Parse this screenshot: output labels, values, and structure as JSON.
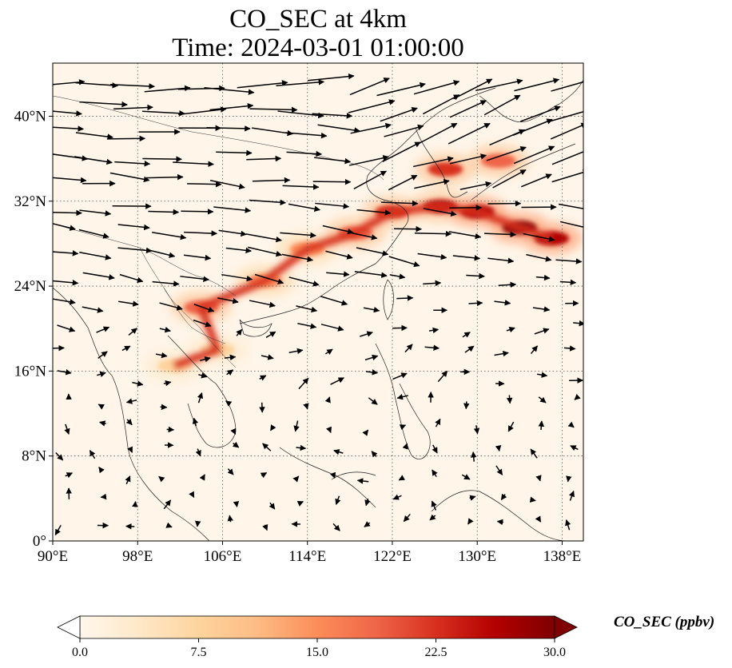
{
  "title_line1": "CO_SEC at 4km",
  "title_line2": "Time: 2024-03-01 01:00:00",
  "map": {
    "lon_range": [
      90,
      140
    ],
    "lat_range": [
      0,
      45
    ],
    "lon_ticks": [
      {
        "value": 90,
        "label": "90°E"
      },
      {
        "value": 98,
        "label": "98°E"
      },
      {
        "value": 106,
        "label": "106°E"
      },
      {
        "value": 114,
        "label": "114°E"
      },
      {
        "value": 122,
        "label": "122°E"
      },
      {
        "value": 130,
        "label": "130°E"
      },
      {
        "value": 138,
        "label": "138°E"
      }
    ],
    "lat_ticks": [
      {
        "value": 0,
        "label": "0°"
      },
      {
        "value": 8,
        "label": "8°N"
      },
      {
        "value": 16,
        "label": "16°N"
      },
      {
        "value": 24,
        "label": "24°N"
      },
      {
        "value": 32,
        "label": "32°N"
      },
      {
        "value": 40,
        "label": "40°N"
      }
    ],
    "gridlines": true,
    "field": "CO_SEC concentration at 4km",
    "plume_path": [
      {
        "lon": 101.5,
        "lat": 16.5,
        "value": 6
      },
      {
        "lon": 105.5,
        "lat": 18.0,
        "value": 8
      },
      {
        "lon": 104.0,
        "lat": 22.0,
        "value": 20
      },
      {
        "lon": 110.0,
        "lat": 24.5,
        "value": 14
      },
      {
        "lon": 114.0,
        "lat": 27.5,
        "value": 16
      },
      {
        "lon": 118.5,
        "lat": 29.0,
        "value": 20
      },
      {
        "lon": 122.0,
        "lat": 31.0,
        "value": 24
      },
      {
        "lon": 126.5,
        "lat": 31.5,
        "value": 26
      },
      {
        "lon": 130.0,
        "lat": 31.0,
        "value": 28
      },
      {
        "lon": 134.0,
        "lat": 29.5,
        "value": 29
      },
      {
        "lon": 137.0,
        "lat": 28.5,
        "value": 27
      },
      {
        "lon": 127.0,
        "lat": 35.0,
        "value": 24
      },
      {
        "lon": 132.0,
        "lat": 35.8,
        "value": 20
      }
    ],
    "wind_vectors": "westerly jet north of 20°N, weak variable winds south of 16°N"
  },
  "colorbar": {
    "label": "CO_SEC (ppbv)",
    "min": 0.0,
    "max": 30.0,
    "ticks": [
      "0.0",
      "7.5",
      "15.0",
      "22.5",
      "30.0"
    ],
    "extend": "both",
    "colormap": "OrRd",
    "colors": [
      "#fff7ec",
      "#fee8c8",
      "#fdd49e",
      "#fdbb84",
      "#fc8d59",
      "#ef6548",
      "#d7301f",
      "#b30000",
      "#7f0000"
    ]
  }
}
